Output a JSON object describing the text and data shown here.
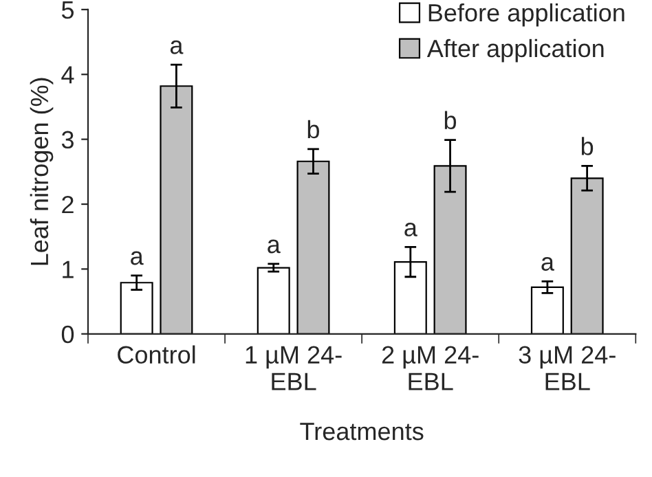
{
  "chart_data": {
    "type": "bar",
    "xlabel": "Treatments",
    "ylabel": "Leaf nitrogen (%)",
    "categories": [
      "Control",
      "1 µM 24-\nEBL",
      "2 µM 24-\nEBL",
      "3 µM 24-\nEBL"
    ],
    "series": [
      {
        "name": "Before application",
        "color": "#ffffff",
        "values": [
          0.79,
          1.02,
          1.11,
          0.72
        ],
        "errors": [
          0.11,
          0.06,
          0.23,
          0.09
        ],
        "value_labels": [
          "a",
          "a",
          "a",
          "a"
        ]
      },
      {
        "name": "After application",
        "color": "#bfbfbf",
        "values": [
          3.82,
          2.66,
          2.59,
          2.4
        ],
        "errors": [
          0.33,
          0.19,
          0.4,
          0.19
        ],
        "value_labels": [
          "a",
          "b",
          "b",
          "b"
        ]
      }
    ],
    "ylim": [
      0,
      5
    ],
    "yticks": [
      0,
      1,
      2,
      3,
      4,
      5
    ],
    "grid": false,
    "legend": "top right"
  }
}
